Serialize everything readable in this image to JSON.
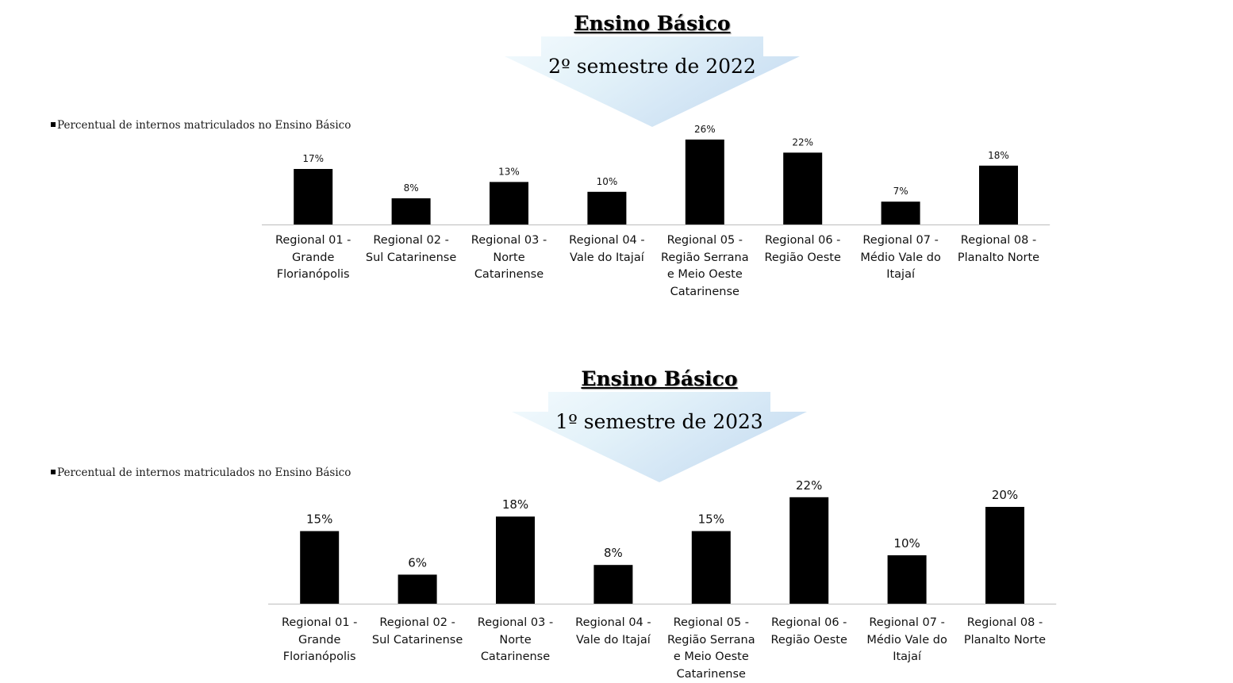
{
  "chart_data": [
    {
      "type": "bar",
      "title": "Ensino Básico",
      "subtitle": "2º semestre de 2022",
      "legend": "Percentual de internos matriculados no Ensino Básico",
      "categories": [
        "Regional 01 - Grande Florianópolis",
        "Regional 02 - Sul Catarinense",
        "Regional 03 - Norte Catarinense",
        "Regional 04 - Vale do Itajaí",
        "Regional 05 - Região Serrana e Meio Oeste Catarinense",
        "Regional 06 - Região Oeste",
        "Regional 07 - Médio Vale do Itajaí",
        "Regional 08 - Planalto Norte"
      ],
      "series": [
        {
          "name": "Percentual de internos matriculados no Ensino Básico",
          "values": [
            17,
            8,
            13,
            10,
            26,
            22,
            7,
            18
          ]
        }
      ],
      "value_labels": [
        "17%",
        "8%",
        "13%",
        "10%",
        "26%",
        "22%",
        "7%",
        "18%"
      ],
      "bar_color": "#000000",
      "grid": false,
      "legend_position": "top-left"
    },
    {
      "type": "bar",
      "title": "Ensino Básico",
      "subtitle": "1º semestre de 2023",
      "legend": "Percentual de internos matriculados no Ensino Básico",
      "categories": [
        "Regional 01 - Grande Florianópolis",
        "Regional 02 - Sul Catarinense",
        "Regional 03 - Norte Catarinense",
        "Regional 04 - Vale do Itajaí",
        "Regional 05 - Região Serrana e Meio Oeste Catarinense",
        "Regional 06 - Região Oeste",
        "Regional 07 - Médio Vale do Itajaí",
        "Regional 08 - Planalto Norte"
      ],
      "series": [
        {
          "name": "Percentual de internos matriculados no Ensino Básico",
          "values": [
            15,
            6,
            18,
            8,
            15,
            22,
            10,
            20
          ]
        }
      ],
      "value_labels": [
        "15%",
        "6%",
        "18%",
        "8%",
        "15%",
        "22%",
        "10%",
        "20%"
      ],
      "bar_color": "#000000",
      "grid": false,
      "legend_position": "top-left"
    }
  ]
}
